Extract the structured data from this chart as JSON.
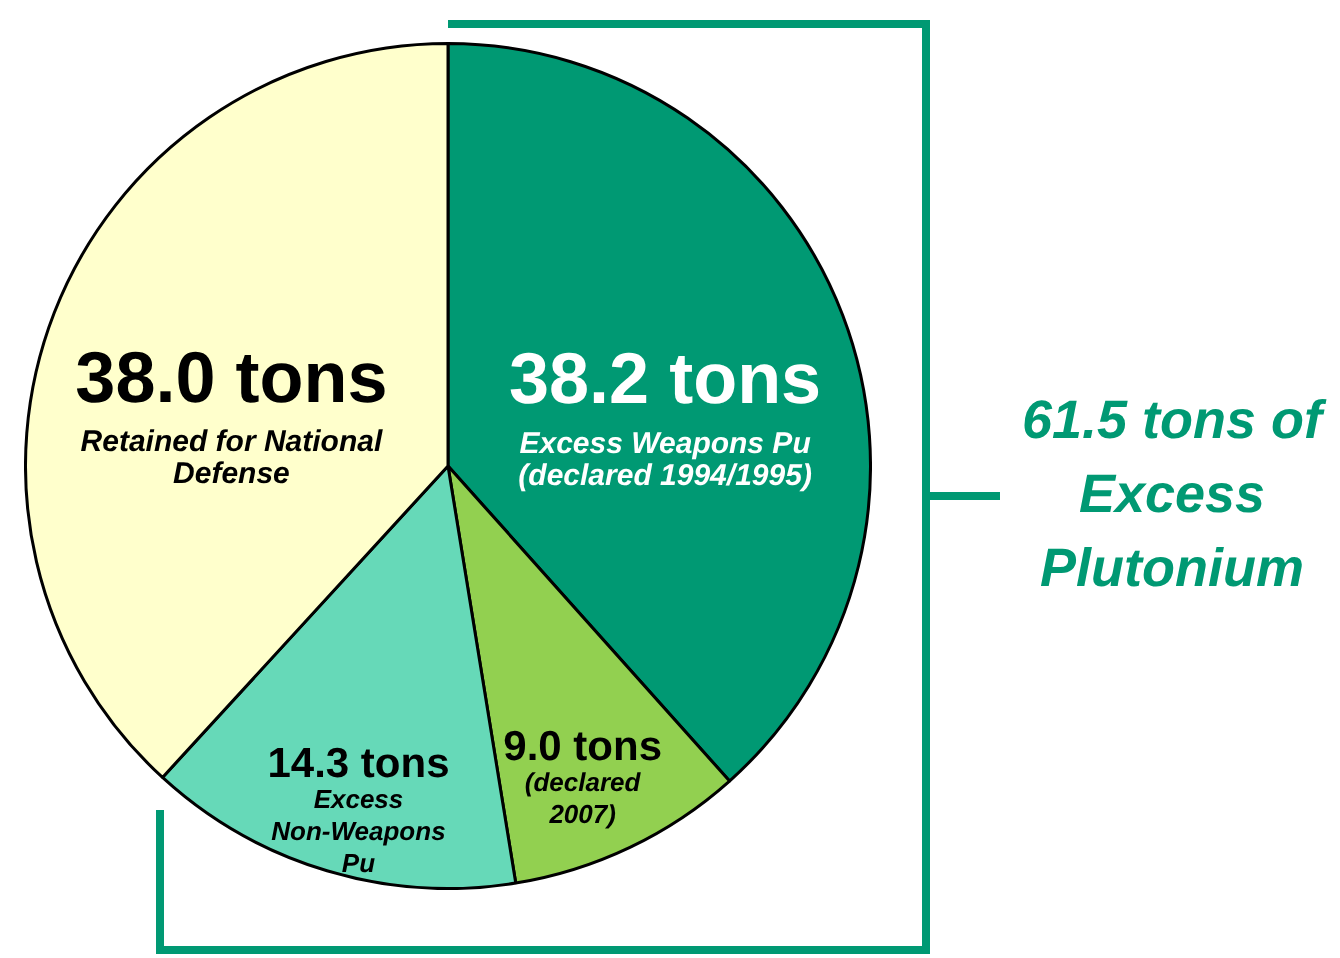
{
  "chart_data": {
    "type": "pie",
    "categories": [
      "Excess Weapons Pu (declared 1994/1995)",
      "(declared 2007)",
      "Excess Non-Weapons Pu",
      "Retained for National Defense"
    ],
    "values": [
      38.2,
      9.0,
      14.3,
      38.0
    ],
    "value_labels": [
      "38.2 tons",
      "9.0 tons",
      "14.3 tons",
      "38.0 tons"
    ],
    "colors": [
      "#009973",
      "#92d050",
      "#66d9b8",
      "#ffffcc"
    ],
    "annotations": [
      "61.5 tons of Excess Plutonium"
    ],
    "legend": false
  }
}
